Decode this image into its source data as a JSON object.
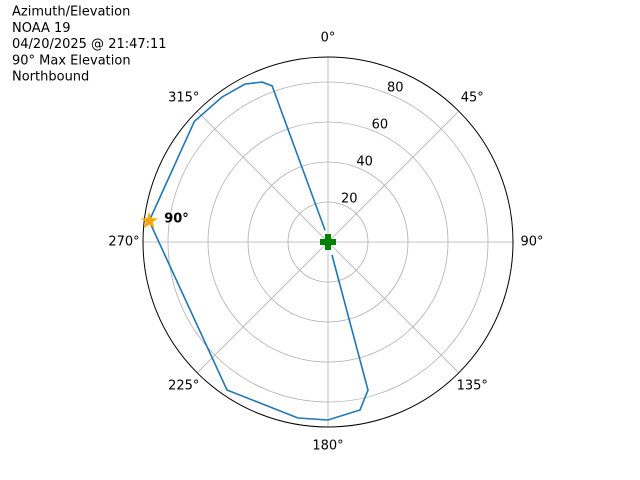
{
  "chart_data": {
    "type": "polar",
    "title_lines": [
      "Azimuth/Elevation",
      "NOAA 19",
      "04/20/2025 @ 21:47:11",
      "90° Max Elevation",
      "Northbound"
    ],
    "theta_zero": "N",
    "theta_direction": "clockwise",
    "grid": true,
    "rlim": [
      0,
      92.5
    ],
    "rticks": [
      20,
      40,
      60,
      80
    ],
    "rlabel_angle": 22.5,
    "thetaticks": [
      {
        "value": 0,
        "label": "0°"
      },
      {
        "value": 45,
        "label": "45°"
      },
      {
        "value": 90,
        "label": "90°"
      },
      {
        "value": 135,
        "label": "135°"
      },
      {
        "value": 180,
        "label": "180°"
      },
      {
        "value": 225,
        "label": "225°"
      },
      {
        "value": 270,
        "label": "270°"
      },
      {
        "value": 315,
        "label": "315°"
      }
    ],
    "series": [
      {
        "color": "#1f77b4",
        "theta": [
          346,
          340.3,
          337.6,
          332.3,
          323.8,
          312.1,
          276.7,
          214.3,
          189.7,
          180,
          169.2,
          164.9,
          163
        ],
        "r": [
          6,
          82.9,
          86.5,
          89.2,
          89.8,
          90,
          90,
          89.6,
          89.3,
          89,
          85.5,
          76.7,
          6.8
        ]
      }
    ],
    "markers": [
      {
        "shape": "star",
        "color": "#ffa500",
        "theta": 276.7,
        "r": 90,
        "label": "90°"
      },
      {
        "shape": "plus",
        "color": "#008000",
        "theta": 0,
        "r": 0
      }
    ]
  }
}
